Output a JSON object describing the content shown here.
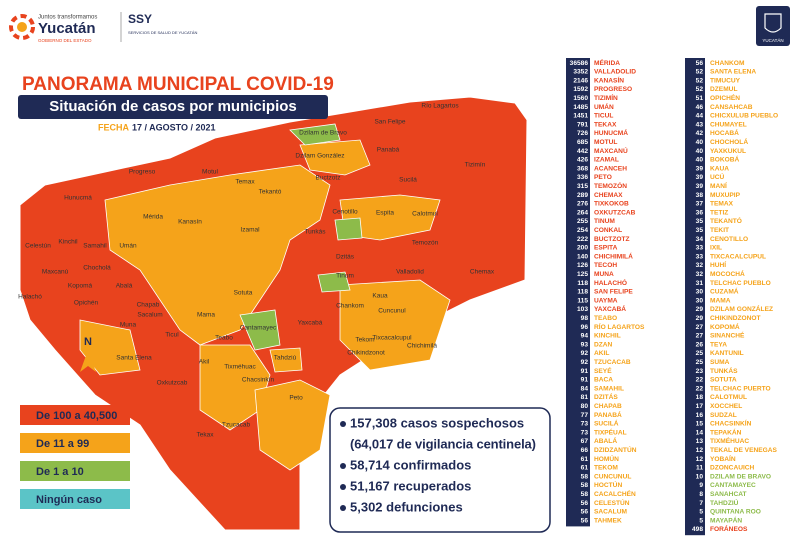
{
  "header": {
    "slogan": "Juntos transformamos",
    "state": "Yucatán",
    "government": "GOBIERNO DEL ESTADO",
    "agency": "SSY",
    "agency_full": "SERVICIOS DE SALUD DE YUCATÁN",
    "emblem": "YUCATÁN"
  },
  "title": "PANORAMA MUNICIPAL COVID-19",
  "subtitle": "Situación de casos por municipios",
  "date_label": "FECHA",
  "date": "17 / AGOSTO / 2021",
  "north": "N",
  "legend": [
    {
      "label": "De 100 a 40,500",
      "color": "#e8431e"
    },
    {
      "label": "De 11 a 99",
      "color": "#f5a31a"
    },
    {
      "label": "De 1 a 10",
      "color": "#8dbb4a"
    },
    {
      "label": "Ningún caso",
      "color": "#5bc4c7"
    }
  ],
  "summary": [
    "157,308 casos sospechosos",
    "(64,017 de vigilancia centinela)",
    "58,714 confirmados",
    "51,167 recuperados",
    "5,302 defunciones"
  ],
  "municipalities_left": [
    [
      36586,
      "MÉRIDA"
    ],
    [
      3352,
      "VALLADOLID"
    ],
    [
      2146,
      "KANASÍN"
    ],
    [
      1592,
      "PROGRESO"
    ],
    [
      1560,
      "TIZIMÍN"
    ],
    [
      1485,
      "UMÁN"
    ],
    [
      1451,
      "TICUL"
    ],
    [
      791,
      "TEKAX"
    ],
    [
      726,
      "HUNUCMÁ"
    ],
    [
      685,
      "MOTUL"
    ],
    [
      442,
      "MAXCANÚ"
    ],
    [
      426,
      "IZAMAL"
    ],
    [
      368,
      "ACANCEH"
    ],
    [
      336,
      "PETO"
    ],
    [
      315,
      "TEMOZÓN"
    ],
    [
      289,
      "CHEMAX"
    ],
    [
      276,
      "TIXKOKOB"
    ],
    [
      264,
      "OXKUTZCAB"
    ],
    [
      255,
      "TINUM"
    ],
    [
      254,
      "CONKAL"
    ],
    [
      222,
      "BUCTZOTZ"
    ],
    [
      200,
      "ESPITA"
    ],
    [
      140,
      "CHICHIMILÁ"
    ],
    [
      126,
      "TECOH"
    ],
    [
      125,
      "MUNA"
    ],
    [
      118,
      "HALACHÓ"
    ],
    [
      118,
      "SAN FELIPE"
    ],
    [
      115,
      "UAYMA"
    ],
    [
      103,
      "YAXCABÁ"
    ],
    [
      98,
      "TEABO"
    ],
    [
      96,
      "RÍO LAGARTOS"
    ],
    [
      94,
      "KINCHIL"
    ],
    [
      93,
      "DZAN"
    ],
    [
      92,
      "AKIL"
    ],
    [
      92,
      "TZUCACAB"
    ],
    [
      91,
      "SEYÉ"
    ],
    [
      91,
      "BACA"
    ],
    [
      84,
      "SAMAHIL"
    ],
    [
      81,
      "DZITÁS"
    ],
    [
      80,
      "CHAPAB"
    ],
    [
      77,
      "PANABÁ"
    ],
    [
      73,
      "SUCILÁ"
    ],
    [
      73,
      "TIXPÉUAL"
    ],
    [
      67,
      "ABALÁ"
    ],
    [
      66,
      "DZIDZANTÚN"
    ],
    [
      61,
      "HOMÚN"
    ],
    [
      61,
      "TEKOM"
    ],
    [
      58,
      "CUNCUNUL"
    ],
    [
      58,
      "HOCTÚN"
    ],
    [
      58,
      "CACALCHÉN"
    ],
    [
      56,
      "CELESTÚN"
    ],
    [
      56,
      "SACALUM"
    ],
    [
      56,
      "TAHMEK"
    ]
  ],
  "municipalities_right": [
    [
      56,
      "CHANKOM"
    ],
    [
      52,
      "SANTA ELENA"
    ],
    [
      52,
      "TIMUCUY"
    ],
    [
      52,
      "DZEMUL"
    ],
    [
      51,
      "OPICHÉN"
    ],
    [
      46,
      "CANSAHCAB"
    ],
    [
      44,
      "CHICXULUB PUEBLO"
    ],
    [
      43,
      "CHUMAYEL"
    ],
    [
      42,
      "HOCABÁ"
    ],
    [
      40,
      "CHOCHOLÁ"
    ],
    [
      40,
      "YAXKUKUL"
    ],
    [
      40,
      "BOKOBÁ"
    ],
    [
      39,
      "KAUA"
    ],
    [
      39,
      "UCÚ"
    ],
    [
      39,
      "MANÍ"
    ],
    [
      38,
      "MUXUPIP"
    ],
    [
      37,
      "TEMAX"
    ],
    [
      36,
      "TETIZ"
    ],
    [
      35,
      "TEKANTÓ"
    ],
    [
      35,
      "TEKIT"
    ],
    [
      34,
      "CENOTILLO"
    ],
    [
      33,
      "IXIL"
    ],
    [
      33,
      "TIXCACALCUPUL"
    ],
    [
      32,
      "HUHÍ"
    ],
    [
      32,
      "MOCOCHÁ"
    ],
    [
      31,
      "TELCHAC PUEBLO"
    ],
    [
      30,
      "CUZAMÁ"
    ],
    [
      30,
      "MAMA"
    ],
    [
      29,
      "DZILAM GONZÁLEZ"
    ],
    [
      29,
      "CHIKINDZONOT"
    ],
    [
      27,
      "KOPOMÁ"
    ],
    [
      27,
      "SINANCHÉ"
    ],
    [
      26,
      "TEYA"
    ],
    [
      25,
      "KANTUNIL"
    ],
    [
      25,
      "SUMA"
    ],
    [
      23,
      "TUNKÁS"
    ],
    [
      22,
      "SOTUTA"
    ],
    [
      22,
      "TELCHAC PUERTO"
    ],
    [
      18,
      "CALOTMUL"
    ],
    [
      17,
      "XOCCHEL"
    ],
    [
      16,
      "SUDZAL"
    ],
    [
      15,
      "CHACSINKÍN"
    ],
    [
      14,
      "TEPAKÁN"
    ],
    [
      13,
      "TIXMÉHUAC"
    ],
    [
      12,
      "TEKAL DE VENEGAS"
    ],
    [
      12,
      "YOBAÍN"
    ],
    [
      11,
      "DZONCAUICH"
    ],
    [
      10,
      "DZILAM DE BRAVO"
    ],
    [
      9,
      "CANTAMAYEC"
    ],
    [
      8,
      "SANAHCAT"
    ],
    [
      7,
      "TAHDZIÚ"
    ],
    [
      5,
      "QUINTANA ROO"
    ],
    [
      5,
      "MAYAPÁN"
    ],
    [
      498,
      "FORÁNEOS"
    ]
  ],
  "map": {
    "labels": [
      "Río Lagartos",
      "San Felipe",
      "Dzilam de Bravo",
      "Panabá",
      "Tizimín",
      "Progreso",
      "Dzilam González",
      "Buctzotz",
      "Sucilá",
      "Hunucmá",
      "Mérida",
      "Cenotillo",
      "Espita",
      "Calotmul",
      "Celestún",
      "Kinchil",
      "Samahil",
      "Umán",
      "Izamal",
      "Tunkás",
      "Temozón",
      "Chocholá",
      "Kopomá",
      "Maxcanú",
      "Abalá",
      "Halachó",
      "Opichén",
      "Muna",
      "Chemax",
      "Valladolid",
      "Tinum",
      "Dzitás",
      "Sotuta",
      "Chankom",
      "Yaxcabá",
      "Santa Elena",
      "Mama",
      "Ticul",
      "Teabo",
      "Tekom",
      "Chikindzonot",
      "Tixcacalcupul",
      "Chichimilá",
      "Oxkutzcab",
      "Akil",
      "Tahdziú",
      "Peto",
      "Tzucacab",
      "Tekax",
      "Chacsinkín",
      "Tixméhuac",
      "Cantamayec",
      "Kaua",
      "Cuncunul",
      "Chapab",
      "Sacalum",
      "Temax",
      "Motul",
      "Tekantó",
      "Kanasín"
    ]
  }
}
